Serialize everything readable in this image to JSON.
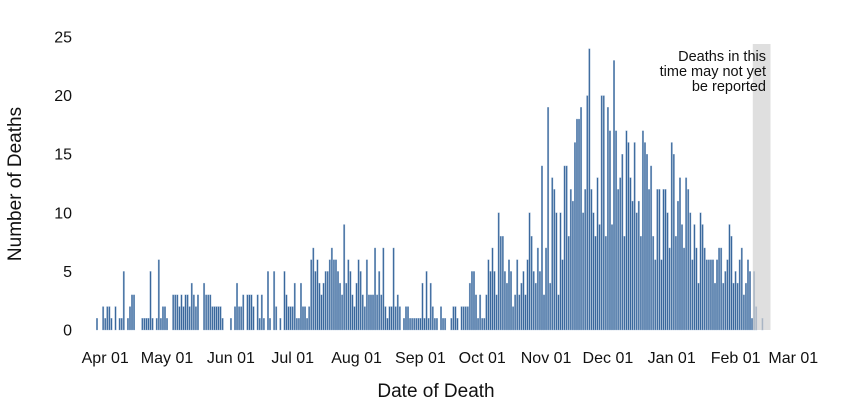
{
  "chart_data": {
    "type": "bar",
    "title": "",
    "xlabel": "Date of Death",
    "ylabel": "Number of Deaths",
    "ylim": [
      0,
      25
    ],
    "yticks": [
      0,
      5,
      10,
      15,
      20,
      25
    ],
    "x_tick_labels": [
      "Apr 01",
      "May 01",
      "Jun 01",
      "Jul 01",
      "Aug 01",
      "Sep 01",
      "Oct 01",
      "Nov 01",
      "Dec 01",
      "Jan 01",
      "Feb 01",
      "Mar 01"
    ],
    "grid": false,
    "legend": false,
    "bar_color": "#39679C",
    "bar_edge_color": "#9BB5D2",
    "first_bar_date": "Mar 28",
    "month_start_indices": [
      4,
      34,
      65,
      95,
      126,
      157,
      187,
      218,
      248,
      279,
      310,
      338
    ],
    "values": [
      1,
      0,
      0,
      2,
      1,
      2,
      2,
      1,
      0,
      2,
      0,
      1,
      1,
      5,
      0,
      1,
      2,
      3,
      3,
      0,
      0,
      0,
      1,
      1,
      1,
      1,
      5,
      1,
      0,
      1,
      6,
      1,
      2,
      2,
      1,
      0,
      0,
      3,
      3,
      3,
      2,
      3,
      2,
      3,
      3,
      2,
      4,
      3,
      2,
      3,
      0,
      0,
      4,
      3,
      3,
      3,
      2,
      2,
      2,
      2,
      2,
      1,
      0,
      0,
      0,
      1,
      0,
      2,
      4,
      2,
      2,
      3,
      0,
      3,
      3,
      3,
      2,
      0,
      3,
      1,
      3,
      1,
      0,
      5,
      1,
      0,
      5,
      2,
      0,
      1,
      0,
      5,
      3,
      2,
      2,
      2,
      4,
      1,
      1,
      4,
      2,
      2,
      1,
      2,
      6,
      7,
      5,
      6,
      4,
      3,
      4,
      5,
      5,
      6,
      7,
      6,
      6,
      5,
      4,
      3,
      9,
      4,
      6,
      5,
      3,
      2,
      4,
      6,
      5,
      3,
      2,
      6,
      3,
      3,
      3,
      7,
      3,
      5,
      3,
      7,
      2,
      1,
      2,
      2,
      7,
      2,
      3,
      2,
      0,
      1,
      2,
      2,
      1,
      1,
      1,
      1,
      1,
      1,
      4,
      1,
      5,
      1,
      4,
      2,
      1,
      1,
      0,
      2,
      1,
      1,
      0,
      0,
      1,
      2,
      2,
      1,
      0,
      2,
      2,
      2,
      2,
      4,
      5,
      5,
      3,
      1,
      3,
      1,
      1,
      3,
      6,
      5,
      7,
      5,
      3,
      10,
      8,
      8,
      5,
      4,
      6,
      5,
      2,
      3,
      6,
      3,
      4,
      5,
      3,
      6,
      10,
      8,
      5,
      4,
      7,
      5,
      14,
      3,
      7,
      19,
      4,
      13,
      12,
      10,
      3,
      10,
      6,
      14,
      14,
      8,
      12,
      11,
      16,
      18,
      18,
      19,
      10,
      12,
      20,
      24,
      12,
      10,
      8,
      13,
      9,
      20,
      20,
      8,
      19,
      17,
      9,
      23,
      17,
      12,
      13,
      15,
      8,
      17,
      16,
      13,
      11,
      16,
      10,
      11,
      8,
      17,
      16,
      15,
      12,
      14,
      8,
      6,
      12,
      12,
      6,
      12,
      12,
      10,
      7,
      16,
      15,
      8,
      11,
      13,
      9,
      7,
      13,
      12,
      10,
      6,
      9,
      7,
      4,
      10,
      9,
      7,
      6,
      6,
      6,
      6,
      4,
      6,
      7,
      7,
      4,
      5,
      6,
      9,
      8,
      4,
      5,
      4,
      6,
      7,
      3,
      4,
      6,
      5,
      1,
      5,
      2,
      0,
      0,
      1
    ],
    "shaded_region": {
      "start_day_index": 319,
      "color": "#D3D3D3",
      "opacity": 0.72
    },
    "annotation": {
      "lines": [
        "Deaths in this",
        "time may not yet",
        "be reported"
      ]
    }
  }
}
